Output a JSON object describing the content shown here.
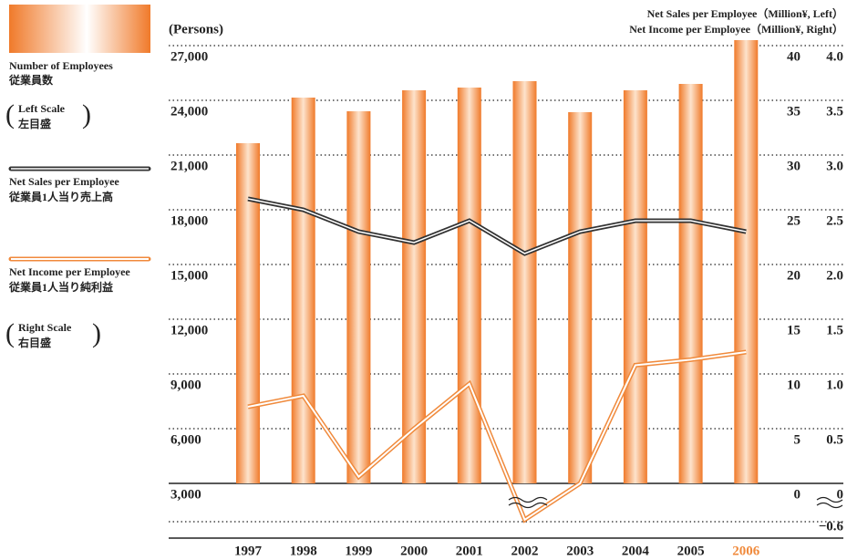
{
  "chart_data": {
    "type": "bar_line",
    "categories": [
      "1997",
      "1998",
      "1999",
      "2000",
      "2001",
      "2002",
      "2003",
      "2004",
      "2005",
      "2006"
    ],
    "highlight_category": "2006",
    "highlight_color": "#f08a3c",
    "y_label": "(Persons)",
    "y2_label": "Net Sales per Employee（Million¥, Left）",
    "y3_label": "Net Income per Employee（Million¥, Right）",
    "ylim": [
      3000,
      27000
    ],
    "yticks": [
      {
        "value": 3000,
        "label": "3,000"
      },
      {
        "value": 6000,
        "label": "6,000"
      },
      {
        "value": 9000,
        "label": "9,000"
      },
      {
        "value": 12000,
        "label": "12,000"
      },
      {
        "value": 15000,
        "label": "15,000"
      },
      {
        "value": 18000,
        "label": "18,000"
      },
      {
        "value": 21000,
        "label": "21,000"
      },
      {
        "value": 24000,
        "label": "24,000"
      },
      {
        "value": 27000,
        "label": "27,000"
      }
    ],
    "y2lim": [
      0,
      40
    ],
    "y2ticks": [
      0,
      5,
      10,
      15,
      20,
      25,
      30,
      35,
      40
    ],
    "y3lim": [
      -0.6,
      4.0
    ],
    "y3ticks": [
      {
        "value": -0.6,
        "label": "−0.6"
      },
      0,
      0.5,
      {
        "value": 1.0,
        "label": "1.0"
      },
      1.5,
      {
        "value": 2.0,
        "label": "2.0"
      },
      2.5,
      {
        "value": 3.0,
        "label": "3.0"
      },
      3.5,
      {
        "value": 4.0,
        "label": "4.0"
      }
    ],
    "series": [
      {
        "name": "Number of Employees",
        "name_ja": "従業員数",
        "scale_note": "Left Scale",
        "scale_note_ja": "左目盛",
        "kind": "bar",
        "axis": "y",
        "color": "#f08a3c",
        "values": [
          21650,
          24150,
          23400,
          24550,
          24700,
          25050,
          23350,
          24550,
          24900,
          27300
        ]
      },
      {
        "name": "Net Sales per Employee",
        "name_ja": "従業員1人当り売上高",
        "kind": "line",
        "axis": "y2",
        "color": "#333333",
        "values": [
          26,
          25,
          23,
          22,
          24,
          21,
          23,
          24,
          24,
          23
        ]
      },
      {
        "name": "Net Income per Employee",
        "name_ja": "従業員1人当り純利益",
        "scale_note": "Right Scale",
        "scale_note_ja": "右目盛",
        "kind": "line",
        "axis": "y3",
        "color": "#f08a3c",
        "values": [
          0.7,
          0.8,
          0.06,
          0.5,
          0.91,
          -0.57,
          0.0,
          1.08,
          1.13,
          1.2
        ]
      }
    ]
  }
}
